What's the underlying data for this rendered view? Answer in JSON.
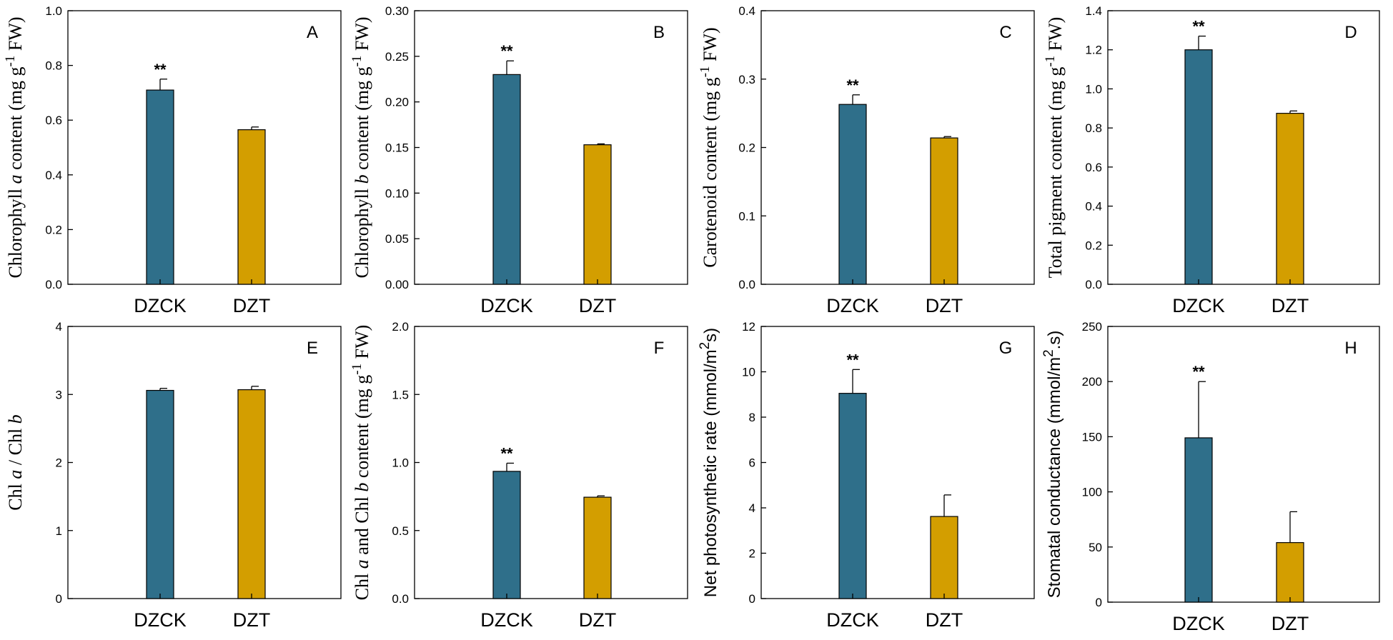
{
  "figure": {
    "colors": {
      "DZCK": "#2f6f8a",
      "DZT": "#d39e00"
    }
  },
  "chart_data": [
    {
      "type": "bar",
      "panel": "A",
      "categories": [
        "DZCK",
        "DZT"
      ],
      "values": [
        0.71,
        0.565
      ],
      "errors": [
        0.04,
        0.01
      ],
      "significance": [
        "**",
        ""
      ],
      "ylim": [
        0,
        1.0
      ],
      "yticks": [
        0.0,
        0.2,
        0.4,
        0.6,
        0.8,
        1.0
      ],
      "decimals": 1,
      "ylabel": {
        "pre": "Chlorophyll ",
        "italic": "a",
        "post": " content  (mg g",
        "sup": "-1",
        "tail": " FW)",
        "font": "serif"
      }
    },
    {
      "type": "bar",
      "panel": "B",
      "categories": [
        "DZCK",
        "DZT"
      ],
      "values": [
        0.23,
        0.153
      ],
      "errors": [
        0.015,
        0.001
      ],
      "significance": [
        "**",
        ""
      ],
      "ylim": [
        0,
        0.3
      ],
      "yticks": [
        0.0,
        0.05,
        0.1,
        0.15,
        0.2,
        0.25,
        0.3
      ],
      "decimals": 2,
      "ylabel": {
        "pre": "Chlorophyll ",
        "italic": "b",
        "post": " content (mg g",
        "sup": "-1",
        "tail": " FW)",
        "font": "serif"
      }
    },
    {
      "type": "bar",
      "panel": "C",
      "categories": [
        "DZCK",
        "DZT"
      ],
      "values": [
        0.263,
        0.214
      ],
      "errors": [
        0.014,
        0.002
      ],
      "significance": [
        "**",
        ""
      ],
      "ylim": [
        0,
        0.4
      ],
      "yticks": [
        0.0,
        0.1,
        0.2,
        0.3,
        0.4
      ],
      "decimals": 1,
      "ylabel": {
        "pre": "Carotenoid  content   (mg g",
        "italic": "",
        "post": "",
        "sup": "-1",
        "tail": " FW)",
        "font": "serif"
      }
    },
    {
      "type": "bar",
      "panel": "D",
      "categories": [
        "DZCK",
        "DZT"
      ],
      "values": [
        1.2,
        0.875
      ],
      "errors": [
        0.07,
        0.012
      ],
      "significance": [
        "**",
        ""
      ],
      "ylim": [
        0,
        1.4
      ],
      "yticks": [
        0.0,
        0.2,
        0.4,
        0.6,
        0.8,
        1.0,
        1.2,
        1.4
      ],
      "decimals": 1,
      "ylabel": {
        "pre": "Total pigment content      (mg g",
        "italic": "",
        "post": "",
        "sup": "-1",
        "tail": " FW)",
        "font": "serif"
      }
    },
    {
      "type": "bar",
      "panel": "E",
      "categories": [
        "DZCK",
        "DZT"
      ],
      "values": [
        3.06,
        3.07
      ],
      "errors": [
        0.03,
        0.05
      ],
      "significance": [
        "",
        ""
      ],
      "ylim": [
        0,
        4
      ],
      "yticks": [
        0,
        1,
        2,
        3,
        4
      ],
      "decimals": 0,
      "ylabel": {
        "pre": "Chl ",
        "italic": "a",
        "post": " / Chl ",
        "italic2": "b",
        "sup": "",
        "tail": "",
        "font": "serif"
      }
    },
    {
      "type": "bar",
      "panel": "F",
      "categories": [
        "DZCK",
        "DZT"
      ],
      "values": [
        0.935,
        0.745
      ],
      "errors": [
        0.06,
        0.01
      ],
      "significance": [
        "**",
        ""
      ],
      "ylim": [
        0,
        2.0
      ],
      "yticks": [
        0.0,
        0.5,
        1.0,
        1.5,
        2.0
      ],
      "decimals": 1,
      "ylabel": {
        "pre": "Chl ",
        "italic": "a",
        "post": " and Chl ",
        "italic2": "b",
        "post2": " content   (mg g",
        "sup": "-1",
        "tail": " FW)",
        "font": "serif"
      }
    },
    {
      "type": "bar",
      "panel": "G",
      "categories": [
        "DZCK",
        "DZT"
      ],
      "values": [
        9.05,
        3.62
      ],
      "errors": [
        1.05,
        0.95
      ],
      "significance": [
        "**",
        ""
      ],
      "ylim": [
        0,
        12
      ],
      "yticks": [
        0,
        2,
        4,
        6,
        8,
        10,
        12
      ],
      "decimals": 0,
      "ylabel": {
        "pre": "Net photosynthetic rate (mmol/m",
        "italic": "",
        "post": "",
        "sup": "2",
        "tail": "s)",
        "font": "sans"
      }
    },
    {
      "type": "bar",
      "panel": "H",
      "categories": [
        "DZCK",
        "DZT"
      ],
      "values": [
        149,
        54
      ],
      "errors": [
        51,
        28
      ],
      "significance": [
        "**",
        ""
      ],
      "ylim": [
        0,
        250
      ],
      "yticks": [
        0,
        50,
        100,
        150,
        200,
        250
      ],
      "decimals": 0,
      "ylabel": {
        "pre": "Stomatal conductance (mmol/m",
        "italic": "",
        "post": "",
        "sup": "2",
        "tail": ".s)",
        "font": "sans"
      }
    }
  ]
}
